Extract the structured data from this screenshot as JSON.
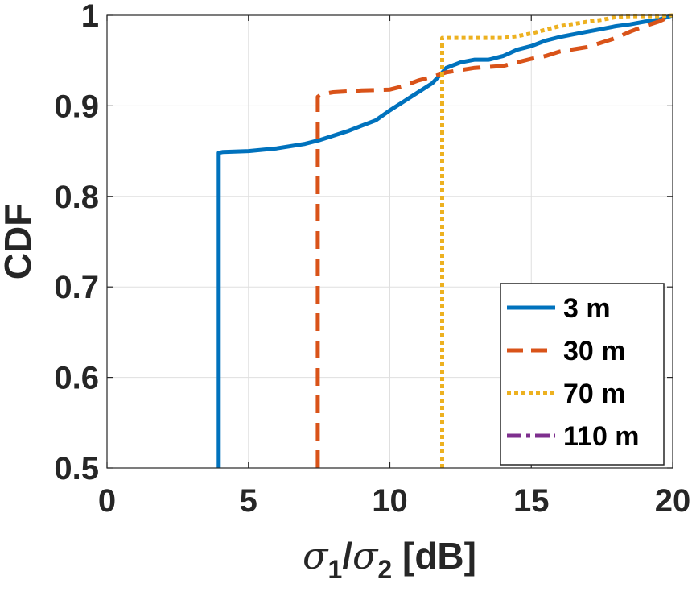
{
  "chart_data": {
    "type": "line",
    "title": "",
    "xlabel": {
      "symbol": "σ",
      "sub1": "1",
      "slash": "/",
      "sub2": "2",
      "unit": " [dB]"
    },
    "ylabel": "CDF",
    "xlim": [
      0,
      20
    ],
    "ylim": [
      0.5,
      1
    ],
    "xticks": [
      0,
      5,
      10,
      15,
      20
    ],
    "xtick_labels": [
      "0",
      "5",
      "10",
      "15",
      "20"
    ],
    "yticks": [
      0.5,
      0.6,
      0.7,
      0.8,
      0.9,
      1.0
    ],
    "ytick_labels": [
      "0.5",
      "0.6",
      "0.7",
      "0.8",
      "0.9",
      "1"
    ],
    "grid": true,
    "legend_position": "bottom-right",
    "series": [
      {
        "name": "3 m",
        "color": "#0072BD",
        "style": "solid",
        "x": [
          3.95,
          3.95,
          4.1,
          5,
          6,
          7,
          7.5,
          8,
          8.5,
          9,
          9.5,
          10,
          10.5,
          11,
          11.5,
          11.8,
          12,
          12.5,
          13,
          13.5,
          14,
          14.5,
          15,
          15.5,
          16,
          16.5,
          17,
          17.5,
          18,
          18.5,
          19,
          19.5,
          19.8,
          20
        ],
        "y": [
          0.5,
          0.848,
          0.849,
          0.85,
          0.853,
          0.858,
          0.862,
          0.867,
          0.872,
          0.878,
          0.884,
          0.895,
          0.905,
          0.915,
          0.925,
          0.935,
          0.942,
          0.948,
          0.951,
          0.951,
          0.955,
          0.962,
          0.966,
          0.972,
          0.976,
          0.979,
          0.982,
          0.985,
          0.988,
          0.99,
          0.993,
          0.995,
          0.998,
          1.0
        ]
      },
      {
        "name": "30 m",
        "color": "#D95319",
        "style": "dashed",
        "x": [
          7.45,
          7.45,
          7.6,
          8,
          9,
          10,
          10.5,
          11,
          11.5,
          12,
          13,
          14,
          14.5,
          15,
          15.5,
          16,
          17,
          18,
          18.5,
          19,
          19.5,
          20
        ],
        "y": [
          0.5,
          0.91,
          0.913,
          0.915,
          0.917,
          0.918,
          0.922,
          0.928,
          0.932,
          0.937,
          0.942,
          0.944,
          0.948,
          0.952,
          0.955,
          0.96,
          0.965,
          0.975,
          0.982,
          0.988,
          0.993,
          1.0
        ]
      },
      {
        "name": "70 m",
        "color": "#EDB120",
        "style": "dotted",
        "x": [
          11.85,
          11.85,
          12,
          13,
          14,
          14.5,
          15,
          15.5,
          16,
          17,
          17.5,
          18,
          18.5,
          19,
          19.5,
          20
        ],
        "y": [
          0.5,
          0.975,
          0.975,
          0.975,
          0.975,
          0.977,
          0.98,
          0.984,
          0.988,
          0.993,
          0.995,
          0.998,
          0.999,
          0.999,
          0.999,
          1.0
        ]
      },
      {
        "name": "110 m",
        "color": "#7E2F8E",
        "style": "dashdot",
        "x": [],
        "y": []
      }
    ]
  }
}
